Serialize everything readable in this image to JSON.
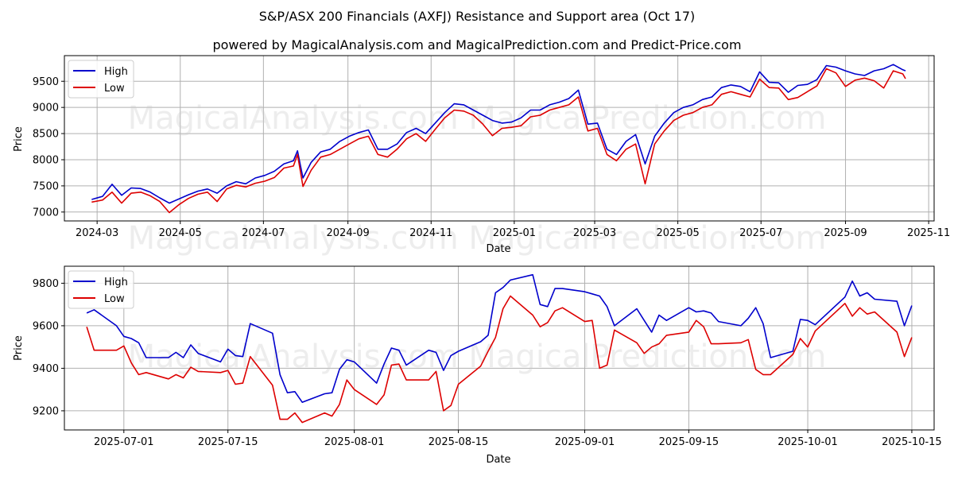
{
  "title": "S&P/ASX 200 Financials (AXFJ) Resistance and Support area (Oct 17)",
  "subtitle": "powered by MagicalAnalysis.com and MagicalPrediction.com and Predict-Price.com",
  "watermark": "MagicalAnalysis.com    MagicalPrediction.com",
  "colors": {
    "high": "#0000cc",
    "low": "#dd0000",
    "grid": "#b0b0b0"
  },
  "chart_data": [
    {
      "type": "line",
      "xlabel": "Date",
      "ylabel": "Price",
      "grid": true,
      "legend": "top-left",
      "xlim": [
        "2024-02-06",
        "2025-11-05"
      ],
      "ylim": [
        6830,
        9990
      ],
      "x_ticks": [
        {
          "date": "2024-03-01",
          "label": "2024-03"
        },
        {
          "date": "2024-05-01",
          "label": "2024-05"
        },
        {
          "date": "2024-07-01",
          "label": "2024-07"
        },
        {
          "date": "2024-09-01",
          "label": "2024-09"
        },
        {
          "date": "2024-11-01",
          "label": "2024-11"
        },
        {
          "date": "2025-01-01",
          "label": "2025-01"
        },
        {
          "date": "2025-03-01",
          "label": "2025-03"
        },
        {
          "date": "2025-05-01",
          "label": "2025-05"
        },
        {
          "date": "2025-07-01",
          "label": "2025-07"
        },
        {
          "date": "2025-09-01",
          "label": "2025-09"
        },
        {
          "date": "2025-11-01",
          "label": "2025-11"
        }
      ],
      "y_ticks": [
        7000,
        7500,
        8000,
        8500,
        9000,
        9500
      ],
      "series": [
        {
          "name": "High",
          "x": [
            "2024-02-26",
            "2024-03-05",
            "2024-03-12",
            "2024-03-19",
            "2024-03-26",
            "2024-04-02",
            "2024-04-09",
            "2024-04-16",
            "2024-04-23",
            "2024-04-30",
            "2024-05-07",
            "2024-05-14",
            "2024-05-21",
            "2024-05-28",
            "2024-06-04",
            "2024-06-11",
            "2024-06-18",
            "2024-06-25",
            "2024-07-02",
            "2024-07-09",
            "2024-07-16",
            "2024-07-23",
            "2024-07-26",
            "2024-07-30",
            "2024-08-05",
            "2024-08-12",
            "2024-08-19",
            "2024-08-26",
            "2024-09-02",
            "2024-09-09",
            "2024-09-16",
            "2024-09-23",
            "2024-09-30",
            "2024-10-07",
            "2024-10-14",
            "2024-10-21",
            "2024-10-28",
            "2024-11-04",
            "2024-11-11",
            "2024-11-18",
            "2024-11-25",
            "2024-12-02",
            "2024-12-09",
            "2024-12-16",
            "2024-12-23",
            "2024-12-30",
            "2025-01-06",
            "2025-01-13",
            "2025-01-20",
            "2025-01-27",
            "2025-02-03",
            "2025-02-10",
            "2025-02-17",
            "2025-02-24",
            "2025-03-03",
            "2025-03-10",
            "2025-03-17",
            "2025-03-24",
            "2025-03-31",
            "2025-04-07",
            "2025-04-14",
            "2025-04-21",
            "2025-04-28",
            "2025-05-05",
            "2025-05-12",
            "2025-05-19",
            "2025-05-26",
            "2025-06-02",
            "2025-06-09",
            "2025-06-16",
            "2025-06-23",
            "2025-06-30",
            "2025-07-07",
            "2025-07-14",
            "2025-07-21",
            "2025-07-28",
            "2025-08-04",
            "2025-08-11",
            "2025-08-18",
            "2025-08-25",
            "2025-09-01",
            "2025-09-08",
            "2025-09-15",
            "2025-09-22",
            "2025-09-29",
            "2025-10-06",
            "2025-10-13",
            "2025-10-15"
          ],
          "values": [
            7240,
            7300,
            7530,
            7320,
            7460,
            7450,
            7380,
            7270,
            7170,
            7250,
            7330,
            7400,
            7440,
            7360,
            7500,
            7580,
            7540,
            7650,
            7700,
            7780,
            7920,
            7980,
            8170,
            7650,
            7950,
            8150,
            8200,
            8350,
            8450,
            8520,
            8570,
            8200,
            8200,
            8300,
            8520,
            8600,
            8500,
            8700,
            8900,
            9070,
            9050,
            8950,
            8850,
            8750,
            8700,
            8720,
            8800,
            8950,
            8950,
            9050,
            9100,
            9170,
            9330,
            8680,
            8700,
            8200,
            8100,
            8350,
            8480,
            7920,
            8450,
            8700,
            8900,
            9000,
            9050,
            9150,
            9200,
            9380,
            9430,
            9400,
            9300,
            9680,
            9480,
            9470,
            9290,
            9420,
            9440,
            9530,
            9800,
            9770,
            9700,
            9640,
            9610,
            9700,
            9740,
            9820,
            9720,
            9700
          ]
        },
        {
          "name": "Low",
          "x": [
            "2024-02-26",
            "2024-03-05",
            "2024-03-12",
            "2024-03-19",
            "2024-03-26",
            "2024-04-02",
            "2024-04-09",
            "2024-04-16",
            "2024-04-23",
            "2024-04-30",
            "2024-05-07",
            "2024-05-14",
            "2024-05-21",
            "2024-05-28",
            "2024-06-04",
            "2024-06-11",
            "2024-06-18",
            "2024-06-25",
            "2024-07-02",
            "2024-07-09",
            "2024-07-16",
            "2024-07-23",
            "2024-07-26",
            "2024-07-30",
            "2024-08-05",
            "2024-08-12",
            "2024-08-19",
            "2024-08-26",
            "2024-09-02",
            "2024-09-09",
            "2024-09-16",
            "2024-09-23",
            "2024-09-30",
            "2024-10-07",
            "2024-10-14",
            "2024-10-21",
            "2024-10-28",
            "2024-11-04",
            "2024-11-11",
            "2024-11-18",
            "2024-11-25",
            "2024-12-02",
            "2024-12-09",
            "2024-12-16",
            "2024-12-23",
            "2024-12-30",
            "2025-01-06",
            "2025-01-13",
            "2025-01-20",
            "2025-01-27",
            "2025-02-03",
            "2025-02-10",
            "2025-02-17",
            "2025-02-24",
            "2025-03-03",
            "2025-03-10",
            "2025-03-17",
            "2025-03-24",
            "2025-03-31",
            "2025-04-07",
            "2025-04-14",
            "2025-04-21",
            "2025-04-28",
            "2025-05-05",
            "2025-05-12",
            "2025-05-19",
            "2025-05-26",
            "2025-06-02",
            "2025-06-09",
            "2025-06-16",
            "2025-06-23",
            "2025-06-30",
            "2025-07-07",
            "2025-07-14",
            "2025-07-21",
            "2025-07-28",
            "2025-08-04",
            "2025-08-11",
            "2025-08-18",
            "2025-08-25",
            "2025-09-01",
            "2025-09-08",
            "2025-09-15",
            "2025-09-22",
            "2025-09-29",
            "2025-10-06",
            "2025-10-13",
            "2025-10-15"
          ],
          "values": [
            7190,
            7230,
            7380,
            7170,
            7360,
            7380,
            7310,
            7200,
            6990,
            7140,
            7260,
            7340,
            7380,
            7200,
            7440,
            7510,
            7480,
            7550,
            7590,
            7660,
            7840,
            7880,
            8100,
            7490,
            7800,
            8050,
            8100,
            8200,
            8300,
            8400,
            8450,
            8100,
            8050,
            8200,
            8400,
            8500,
            8350,
            8580,
            8800,
            8950,
            8930,
            8850,
            8680,
            8460,
            8600,
            8620,
            8650,
            8820,
            8850,
            8950,
            9000,
            9050,
            9200,
            8550,
            8600,
            8100,
            7980,
            8200,
            8300,
            7540,
            8300,
            8550,
            8750,
            8850,
            8900,
            9000,
            9050,
            9250,
            9300,
            9250,
            9200,
            9540,
            9380,
            9370,
            9150,
            9190,
            9300,
            9410,
            9740,
            9660,
            9400,
            9520,
            9560,
            9510,
            9370,
            9700,
            9640,
            9550
          ]
        }
      ]
    },
    {
      "type": "line",
      "xlabel": "Date",
      "ylabel": "Price",
      "grid": true,
      "legend": "top-left",
      "xlim": [
        "2025-06-23",
        "2025-10-18"
      ],
      "ylim": [
        9110,
        9880
      ],
      "x_ticks": [
        {
          "date": "2025-07-01",
          "label": "2025-07-01"
        },
        {
          "date": "2025-07-15",
          "label": "2025-07-15"
        },
        {
          "date": "2025-08-01",
          "label": "2025-08-01"
        },
        {
          "date": "2025-08-15",
          "label": "2025-08-15"
        },
        {
          "date": "2025-09-01",
          "label": "2025-09-01"
        },
        {
          "date": "2025-09-15",
          "label": "2025-09-15"
        },
        {
          "date": "2025-10-01",
          "label": "2025-10-01"
        },
        {
          "date": "2025-10-15",
          "label": "2025-10-15"
        }
      ],
      "y_ticks": [
        9200,
        9400,
        9600,
        9800
      ],
      "series": [
        {
          "name": "High",
          "x": [
            "2025-06-26",
            "2025-06-27",
            "2025-06-30",
            "2025-07-01",
            "2025-07-02",
            "2025-07-03",
            "2025-07-04",
            "2025-07-07",
            "2025-07-08",
            "2025-07-09",
            "2025-07-10",
            "2025-07-11",
            "2025-07-14",
            "2025-07-15",
            "2025-07-16",
            "2025-07-17",
            "2025-07-18",
            "2025-07-21",
            "2025-07-22",
            "2025-07-23",
            "2025-07-24",
            "2025-07-25",
            "2025-07-28",
            "2025-07-29",
            "2025-07-30",
            "2025-07-31",
            "2025-08-01",
            "2025-08-04",
            "2025-08-05",
            "2025-08-06",
            "2025-08-07",
            "2025-08-08",
            "2025-08-11",
            "2025-08-12",
            "2025-08-13",
            "2025-08-14",
            "2025-08-15",
            "2025-08-18",
            "2025-08-19",
            "2025-08-20",
            "2025-08-21",
            "2025-08-22",
            "2025-08-25",
            "2025-08-26",
            "2025-08-27",
            "2025-08-28",
            "2025-08-29",
            "2025-09-01",
            "2025-09-02",
            "2025-09-03",
            "2025-09-04",
            "2025-09-05",
            "2025-09-08",
            "2025-09-09",
            "2025-09-10",
            "2025-09-11",
            "2025-09-12",
            "2025-09-15",
            "2025-09-16",
            "2025-09-17",
            "2025-09-18",
            "2025-09-19",
            "2025-09-22",
            "2025-09-23",
            "2025-09-24",
            "2025-09-25",
            "2025-09-26",
            "2025-09-29",
            "2025-09-30",
            "2025-10-01",
            "2025-10-02",
            "2025-10-06",
            "2025-10-07",
            "2025-10-08",
            "2025-10-09",
            "2025-10-10",
            "2025-10-13",
            "2025-10-14",
            "2025-10-15"
          ],
          "values": [
            9660,
            9675,
            9600,
            9550,
            9540,
            9520,
            9450,
            9450,
            9475,
            9450,
            9510,
            9470,
            9430,
            9490,
            9460,
            9455,
            9610,
            9565,
            9370,
            9285,
            9290,
            9240,
            9280,
            9285,
            9395,
            9440,
            9430,
            9330,
            9420,
            9495,
            9485,
            9415,
            9485,
            9475,
            9390,
            9460,
            9480,
            9525,
            9555,
            9755,
            9780,
            9815,
            9840,
            9700,
            9690,
            9775,
            9775,
            9760,
            9750,
            9740,
            9690,
            9600,
            9680,
            9625,
            9570,
            9650,
            9625,
            9685,
            9665,
            9670,
            9660,
            9620,
            9600,
            9635,
            9685,
            9610,
            9450,
            9480,
            9630,
            9625,
            9605,
            9735,
            9810,
            9740,
            9755,
            9725,
            9715,
            9600,
            9695
          ]
        },
        {
          "name": "Low",
          "x": [
            "2025-06-26",
            "2025-06-27",
            "2025-06-30",
            "2025-07-01",
            "2025-07-02",
            "2025-07-03",
            "2025-07-04",
            "2025-07-07",
            "2025-07-08",
            "2025-07-09",
            "2025-07-10",
            "2025-07-11",
            "2025-07-14",
            "2025-07-15",
            "2025-07-16",
            "2025-07-17",
            "2025-07-18",
            "2025-07-21",
            "2025-07-22",
            "2025-07-23",
            "2025-07-24",
            "2025-07-25",
            "2025-07-28",
            "2025-07-29",
            "2025-07-30",
            "2025-07-31",
            "2025-08-01",
            "2025-08-04",
            "2025-08-05",
            "2025-08-06",
            "2025-08-07",
            "2025-08-08",
            "2025-08-11",
            "2025-08-12",
            "2025-08-13",
            "2025-08-14",
            "2025-08-15",
            "2025-08-18",
            "2025-08-19",
            "2025-08-20",
            "2025-08-21",
            "2025-08-22",
            "2025-08-25",
            "2025-08-26",
            "2025-08-27",
            "2025-08-28",
            "2025-08-29",
            "2025-09-01",
            "2025-09-02",
            "2025-09-03",
            "2025-09-04",
            "2025-09-05",
            "2025-09-08",
            "2025-09-09",
            "2025-09-10",
            "2025-09-11",
            "2025-09-12",
            "2025-09-15",
            "2025-09-16",
            "2025-09-17",
            "2025-09-18",
            "2025-09-19",
            "2025-09-22",
            "2025-09-23",
            "2025-09-24",
            "2025-09-25",
            "2025-09-26",
            "2025-09-29",
            "2025-09-30",
            "2025-10-01",
            "2025-10-02",
            "2025-10-06",
            "2025-10-07",
            "2025-10-08",
            "2025-10-09",
            "2025-10-10",
            "2025-10-13",
            "2025-10-14",
            "2025-10-15"
          ],
          "values": [
            9595,
            9485,
            9485,
            9505,
            9425,
            9370,
            9380,
            9350,
            9370,
            9355,
            9405,
            9385,
            9380,
            9390,
            9325,
            9330,
            9455,
            9320,
            9160,
            9160,
            9190,
            9145,
            9190,
            9175,
            9230,
            9345,
            9300,
            9230,
            9275,
            9415,
            9420,
            9345,
            9345,
            9385,
            9200,
            9225,
            9325,
            9410,
            9480,
            9545,
            9680,
            9740,
            9650,
            9595,
            9615,
            9670,
            9685,
            9620,
            9625,
            9400,
            9415,
            9580,
            9520,
            9470,
            9500,
            9515,
            9555,
            9570,
            9625,
            9595,
            9515,
            9515,
            9520,
            9535,
            9395,
            9370,
            9370,
            9465,
            9540,
            9500,
            9575,
            9705,
            9645,
            9685,
            9655,
            9665,
            9570,
            9455,
            9545
          ]
        }
      ]
    }
  ]
}
